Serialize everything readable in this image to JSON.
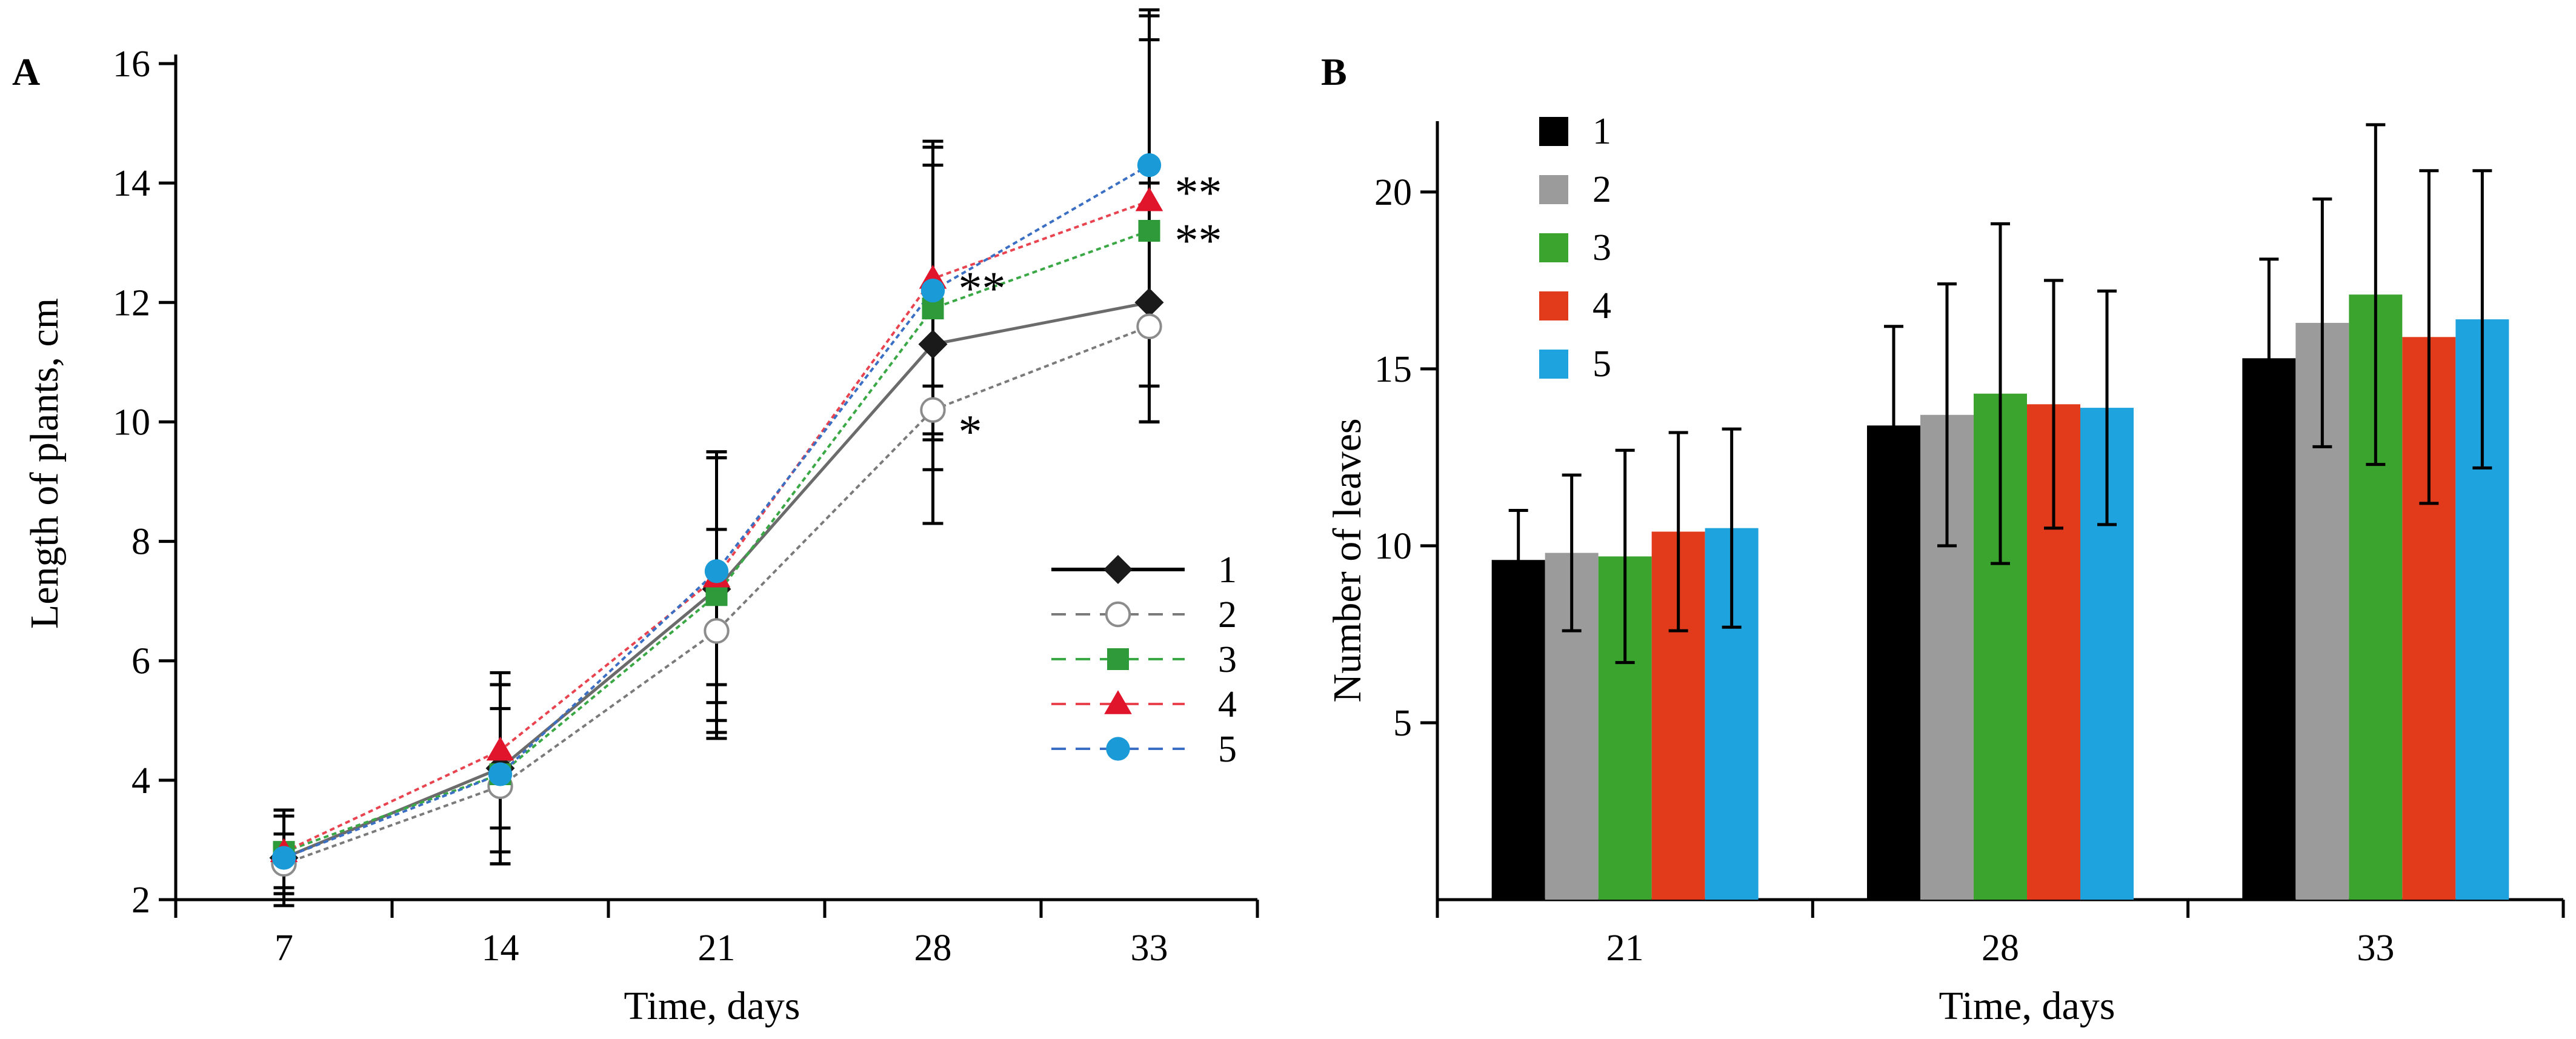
{
  "chart_data": [
    {
      "panel_label": "A",
      "type": "line",
      "xlabel": "Time, days",
      "ylabel": "Length of plants, cm",
      "categories": [
        "7",
        "14",
        "21",
        "28",
        "33"
      ],
      "ylim": [
        2,
        16
      ],
      "yticks": [
        2,
        4,
        6,
        8,
        10,
        12,
        14,
        16
      ],
      "series": [
        {
          "name": "1",
          "color": "#1a1a1a",
          "line": "#6b6b6b",
          "dash": false,
          "marker": "diamond",
          "values": [
            2.7,
            4.2,
            7.2,
            11.3,
            12.0
          ],
          "err": [
            0.7,
            1.4,
            2.2,
            3.0,
            2.0
          ]
        },
        {
          "name": "2",
          "color": "#8c8c8c",
          "line": "#7a7a7a",
          "dash": true,
          "marker": "circle-open",
          "values": [
            2.6,
            3.9,
            6.5,
            10.2,
            11.6
          ],
          "err": [
            0.5,
            1.3,
            1.7,
            0.4,
            1.6
          ]
        },
        {
          "name": "3",
          "color": "#2e9a3a",
          "line": "#3aa845",
          "dash": true,
          "marker": "square",
          "values": [
            2.8,
            4.1,
            7.1,
            11.9,
            13.2
          ],
          "err": [
            0.6,
            1.5,
            2.4,
            2.7,
            3.2
          ]
        },
        {
          "name": "4",
          "color": "#e0142a",
          "line": "#e8434f",
          "dash": true,
          "marker": "triangle",
          "values": [
            2.8,
            4.5,
            7.4,
            12.4,
            13.7
          ],
          "err": [
            0.7,
            1.3,
            2.1,
            2.2,
            3.1
          ]
        },
        {
          "name": "5",
          "color": "#1a9ad6",
          "line": "#3b6fc4",
          "dash": true,
          "marker": "circle",
          "values": [
            2.7,
            4.1,
            7.5,
            12.2,
            14.3
          ],
          "err": [
            0.8,
            1.5,
            1.9,
            2.5,
            2.6
          ]
        }
      ],
      "annotations": [
        {
          "text": "**",
          "x": "28",
          "y": 12.4
        },
        {
          "text": "*",
          "x": "28",
          "y": 10.0
        },
        {
          "text": "**",
          "x": "33",
          "y": 14.0
        },
        {
          "text": "**",
          "x": "33",
          "y": 13.2
        }
      ],
      "legend": "center-right"
    },
    {
      "panel_label": "B",
      "type": "bar",
      "xlabel": "Time, days",
      "ylabel": "Number of leaves",
      "categories": [
        "21",
        "28",
        "33"
      ],
      "ylim": [
        0,
        22
      ],
      "yticks": [
        5,
        10,
        15,
        20
      ],
      "series": [
        {
          "name": "1",
          "color": "#000000",
          "values": [
            9.6,
            13.4,
            15.3
          ],
          "err": [
            1.4,
            2.8,
            2.8
          ]
        },
        {
          "name": "2",
          "color": "#9b9b9b",
          "values": [
            9.8,
            13.7,
            16.3
          ],
          "err": [
            2.2,
            3.7,
            3.5
          ]
        },
        {
          "name": "3",
          "color": "#3ba42f",
          "values": [
            9.7,
            14.3,
            17.1
          ],
          "err": [
            3.0,
            4.8,
            4.8
          ]
        },
        {
          "name": "4",
          "color": "#e23b1c",
          "values": [
            10.4,
            14.0,
            15.9
          ],
          "err": [
            2.8,
            3.5,
            4.7
          ]
        },
        {
          "name": "5",
          "color": "#1ea3de",
          "values": [
            10.5,
            13.9,
            16.4
          ],
          "err": [
            2.8,
            3.3,
            4.2
          ]
        }
      ],
      "legend": "top-left"
    }
  ]
}
